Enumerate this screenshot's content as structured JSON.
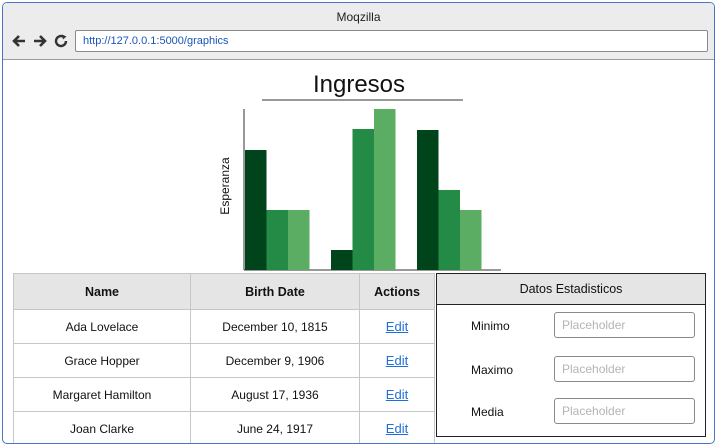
{
  "window": {
    "title": "Moqzilla"
  },
  "toolbar": {
    "url": "http://127.0.0.1:5000/graphics"
  },
  "chart_data": {
    "type": "bar",
    "title": "Ingresos",
    "xlabel": "",
    "ylabel": "Esperanza",
    "categories": [
      "",
      "",
      ""
    ],
    "series": [
      {
        "values": [
          120,
          20,
          140
        ],
        "color": "#00441b"
      },
      {
        "values": [
          60,
          141,
          80
        ],
        "color": "#238b45"
      },
      {
        "values": [
          60,
          161,
          60
        ],
        "color": "#5aad63"
      }
    ],
    "ylim": [
      0,
      161
    ],
    "grid": false
  },
  "table": {
    "headers": [
      "Name",
      "Birth Date",
      "Actions"
    ],
    "rows": [
      {
        "name": "Ada Lovelace",
        "birth": "December 10, 1815",
        "action": "Edit"
      },
      {
        "name": "Grace Hopper",
        "birth": "December 9, 1906",
        "action": "Edit"
      },
      {
        "name": "Margaret Hamilton",
        "birth": "August 17, 1936",
        "action": "Edit"
      },
      {
        "name": "Joan Clarke",
        "birth": "June 24, 1917",
        "action": "Edit"
      }
    ]
  },
  "stats": {
    "title": "Datos Estadisticos",
    "fields": [
      {
        "label": "Minimo",
        "placeholder": "Placeholder"
      },
      {
        "label": "Maximo",
        "placeholder": "Placeholder"
      },
      {
        "label": "Media",
        "placeholder": "Placeholder"
      }
    ]
  }
}
